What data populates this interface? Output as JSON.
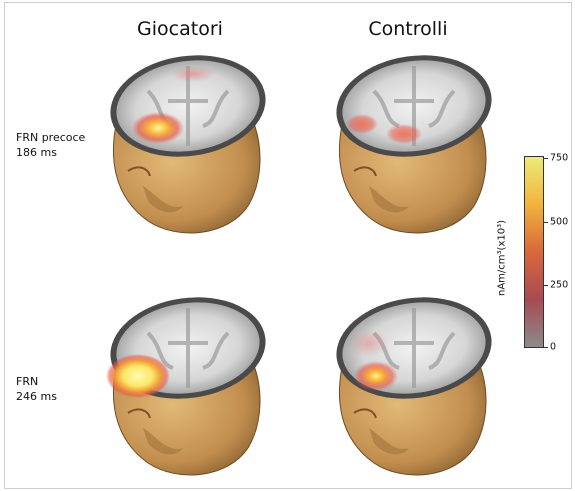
{
  "columns": [
    "Giocatori",
    "Controlli"
  ],
  "rows": [
    {
      "label_line1": "FRN precoce",
      "label_line2": "186 ms"
    },
    {
      "label_line1": "FRN",
      "label_line2": "246 ms"
    }
  ],
  "colorbar": {
    "unit": "nAm/cm³(x10³)",
    "ticks": [
      "750",
      "500",
      "250",
      "0"
    ],
    "colors": [
      "#eeea78",
      "#f0b43c",
      "#d9683a",
      "#a84a52",
      "#8b8b8b"
    ]
  },
  "colors": {
    "skin": "#c99a5a",
    "brain_bg": "#e6e6e6",
    "activation_hot": "#fff27a",
    "activation_mid": "#f49a2e",
    "activation_low": "#e8584a"
  }
}
